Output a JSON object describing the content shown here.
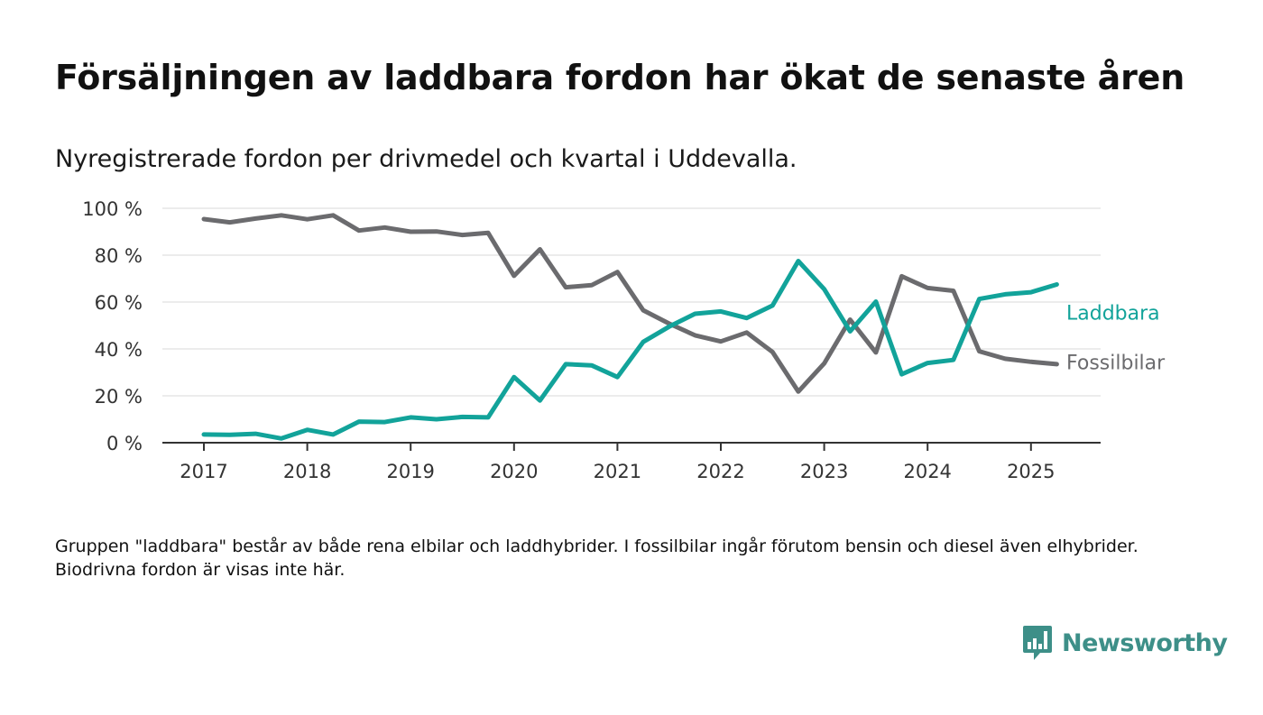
{
  "header": {
    "title": "Försäljningen av laddbara fordon har ökat de senaste åren",
    "subtitle": "Nyregistrerade fordon per drivmedel och kvartal i Uddevalla."
  },
  "footer": {
    "note": "Gruppen \"laddbara\" består av både rena elbilar och laddhybrider. I fossilbilar ingår förutom bensin och diesel även elhybrider. Biodrivna fordon är visas inte här.",
    "brand": "Newsworthy",
    "brand_icon": "newsworthy-logo-icon"
  },
  "chart_data": {
    "type": "line",
    "title": "Försäljningen av laddbara fordon har ökat de senaste åren",
    "subtitle": "Nyregistrerade fordon per drivmedel och kvartal i Uddevalla.",
    "xlabel": "",
    "ylabel": "",
    "x": [
      "2017-Q1",
      "2017-Q2",
      "2017-Q3",
      "2017-Q4",
      "2018-Q1",
      "2018-Q2",
      "2018-Q3",
      "2018-Q4",
      "2019-Q1",
      "2019-Q2",
      "2019-Q3",
      "2019-Q4",
      "2020-Q1",
      "2020-Q2",
      "2020-Q3",
      "2020-Q4",
      "2021-Q1",
      "2021-Q2",
      "2021-Q3",
      "2021-Q4",
      "2022-Q1",
      "2022-Q2",
      "2022-Q3",
      "2022-Q4",
      "2023-Q1",
      "2023-Q2",
      "2023-Q3",
      "2023-Q4",
      "2024-Q1",
      "2024-Q2",
      "2024-Q3",
      "2024-Q4",
      "2025-Q1",
      "2025-Q2"
    ],
    "x_tick_labels": [
      "2017",
      "2018",
      "2019",
      "2020",
      "2021",
      "2022",
      "2023",
      "2024",
      "2025"
    ],
    "y_tick_values": [
      0,
      20,
      40,
      60,
      80,
      100
    ],
    "y_tick_labels": [
      "0 %",
      "20 %",
      "40 %",
      "60 %",
      "80 %",
      "100 %"
    ],
    "ylim": [
      0,
      100
    ],
    "grid": "horizontal",
    "legend": "direct labels at right end of lines",
    "series": [
      {
        "name": "Laddbara",
        "color": "#12a39a",
        "values": [
          3.5,
          3.4,
          3.8,
          1.8,
          5.5,
          3.5,
          9,
          8.8,
          10.8,
          10,
          11,
          10.8,
          28,
          18,
          33.5,
          33,
          28,
          43,
          49.5,
          55,
          56,
          53.2,
          58.5,
          77.5,
          65.5,
          47.5,
          60.2,
          29.2,
          34,
          35.3,
          61.3,
          63.3,
          64.2,
          67.5
        ]
      },
      {
        "name": "Fossilbilar",
        "color": "#6b6b6e",
        "values": [
          95.4,
          94,
          95.6,
          97,
          95.3,
          97,
          90.5,
          91.8,
          90,
          90.1,
          88.6,
          89.5,
          71.2,
          82.5,
          66.3,
          67.2,
          72.8,
          56.5,
          50.8,
          45.8,
          43.2,
          47,
          38.7,
          21.8,
          33.8,
          52.5,
          38.5,
          71,
          66,
          64.8,
          39,
          35.8,
          34.5,
          33.5
        ]
      }
    ]
  }
}
